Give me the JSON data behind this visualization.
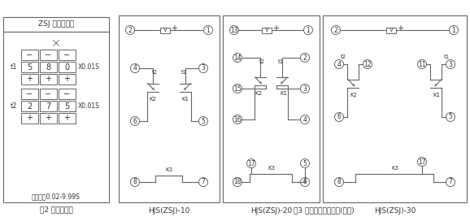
{
  "bg_color": "#ffffff",
  "line_color": "#666666",
  "text_color": "#333333",
  "fig2_title": "ZSJ 时间继电器",
  "fig2_caption": "图2 面板示意图",
  "fig2_subtitle": "整定范围0.02-9.99S",
  "fig3_caption": "图3 继电器端子接线图(背视)",
  "d10_label": "HJS(ZSJ)-10",
  "d20_label": "HJS(ZSJ)-20",
  "d30_label": "HJS(ZSJ)-30"
}
